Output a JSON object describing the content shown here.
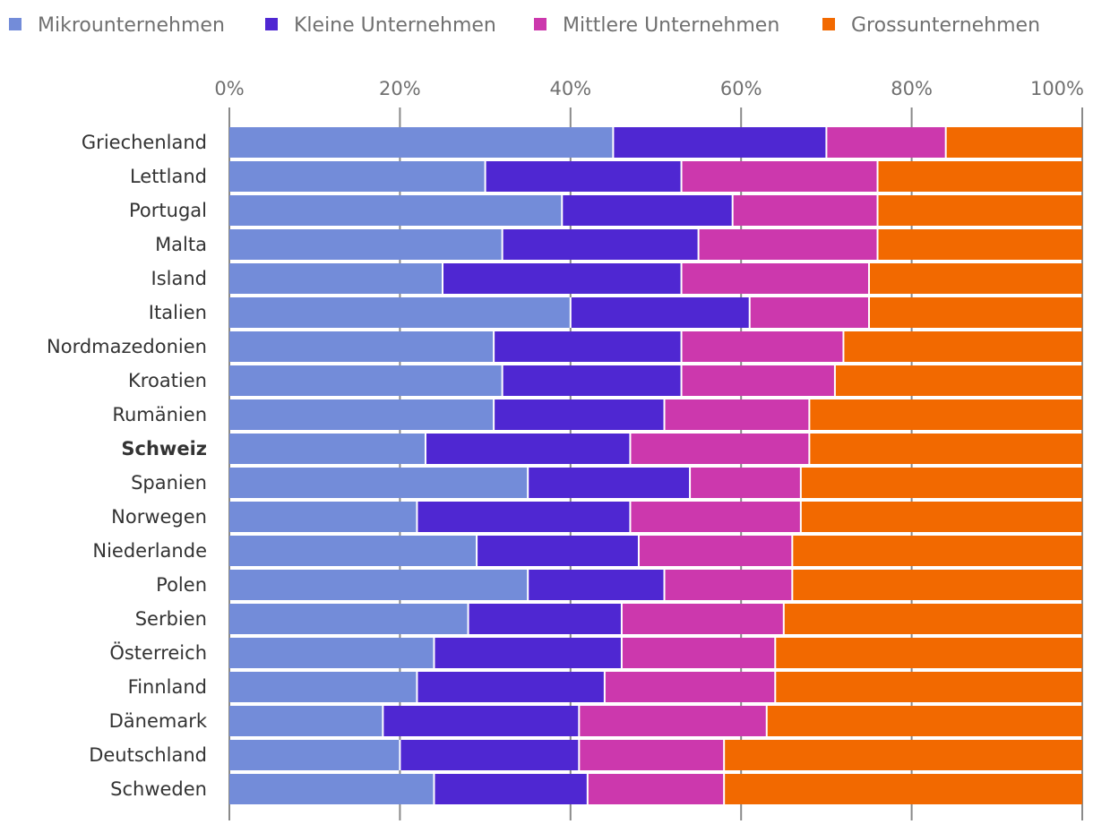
{
  "chart_data": {
    "type": "bar",
    "orientation": "horizontal",
    "stacked": true,
    "title": "",
    "xlabel": "",
    "ylabel": "",
    "xlim": [
      0,
      100
    ],
    "ticks": [
      0,
      20,
      40,
      60,
      80,
      100
    ],
    "tick_labels": [
      "0%",
      "20%",
      "40%",
      "60%",
      "80%",
      "100%"
    ],
    "legend_position": "top-left",
    "highlight": "Schweiz",
    "categories": [
      "Griechenland",
      "Lettland",
      "Portugal",
      "Malta",
      "Island",
      "Italien",
      "Nordmazedonien",
      "Kroatien",
      "Rumänien",
      "Schweiz",
      "Spanien",
      "Norwegen",
      "Niederlande",
      "Polen",
      "Serbien",
      "Österreich",
      "Finnland",
      "Dänemark",
      "Deutschland",
      "Schweden"
    ],
    "series": [
      {
        "name": "Mikrounternehmen",
        "color": "#738cd9",
        "values": [
          45,
          30,
          39,
          32,
          25,
          40,
          31,
          32,
          31,
          23,
          35,
          22,
          29,
          35,
          28,
          24,
          22,
          18,
          20,
          24
        ]
      },
      {
        "name": "Kleine Unternehmen",
        "color": "#4f27d2",
        "values": [
          25,
          23,
          20,
          23,
          28,
          21,
          22,
          21,
          20,
          24,
          19,
          25,
          19,
          16,
          18,
          22,
          22,
          23,
          21,
          18
        ]
      },
      {
        "name": "Mittlere Unternehmen",
        "color": "#cc38ad",
        "values": [
          14,
          23,
          17,
          21,
          22,
          14,
          19,
          18,
          17,
          21,
          13,
          20,
          18,
          15,
          19,
          18,
          20,
          22,
          17,
          16
        ]
      },
      {
        "name": "Grossunternehmen",
        "color": "#f26900",
        "values": [
          16,
          24,
          24,
          24,
          25,
          25,
          28,
          29,
          32,
          32,
          33,
          33,
          34,
          34,
          35,
          36,
          36,
          37,
          42,
          42
        ]
      }
    ]
  }
}
